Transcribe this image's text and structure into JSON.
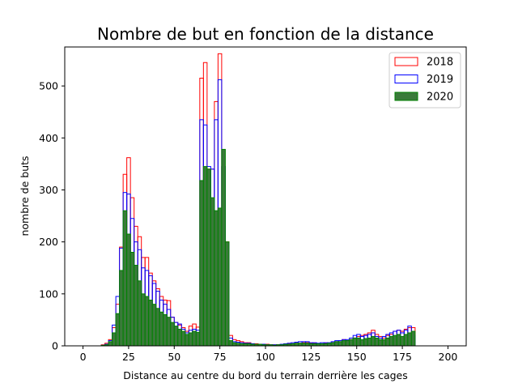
{
  "chart_data": {
    "type": "bar",
    "histtype": "step",
    "title": "Nombre de but en fonction de la distance",
    "xlabel": "Distance au centre du bord du terrain derrière les cages",
    "ylabel": "nombre de buts",
    "xlim": [
      -10,
      210
    ],
    "ylim": [
      0,
      575
    ],
    "xticks": [
      0,
      25,
      50,
      75,
      100,
      125,
      150,
      175,
      200
    ],
    "yticks": [
      0,
      100,
      200,
      300,
      400,
      500
    ],
    "grid": false,
    "legend_position": "top-right",
    "bin_start": 0,
    "bin_width": 2,
    "series": [
      {
        "name": "2018",
        "color": "#ff0000",
        "fill": "none",
        "values": [
          0,
          0,
          0,
          0,
          0,
          2,
          5,
          12,
          35,
          80,
          190,
          330,
          362,
          285,
          230,
          210,
          170,
          170,
          140,
          125,
          110,
          95,
          88,
          87,
          55,
          45,
          40,
          35,
          28,
          38,
          42,
          36,
          515,
          545,
          340,
          340,
          470,
          562,
          345,
          200,
          20,
          12,
          10,
          8,
          6,
          6,
          4,
          4,
          3,
          3,
          3,
          2,
          2,
          2,
          2,
          3,
          4,
          4,
          5,
          5,
          6,
          6,
          5,
          5,
          4,
          4,
          5,
          5,
          6,
          8,
          10,
          12,
          10,
          12,
          15,
          18,
          20,
          22,
          25,
          30,
          22,
          18,
          15,
          20,
          22,
          28,
          30,
          28,
          32,
          35,
          35
        ]
      },
      {
        "name": "2019",
        "color": "#0000ff",
        "fill": "none",
        "values": [
          0,
          0,
          0,
          0,
          0,
          1,
          3,
          10,
          40,
          95,
          188,
          295,
          292,
          245,
          200,
          185,
          150,
          145,
          135,
          120,
          105,
          88,
          80,
          70,
          55,
          45,
          42,
          32,
          25,
          30,
          32,
          30,
          435,
          425,
          345,
          340,
          435,
          512,
          345,
          198,
          15,
          8,
          7,
          6,
          5,
          5,
          4,
          3,
          3,
          3,
          2,
          2,
          2,
          2,
          3,
          4,
          5,
          6,
          7,
          8,
          8,
          8,
          6,
          6,
          5,
          6,
          6,
          6,
          8,
          10,
          10,
          12,
          12,
          15,
          20,
          22,
          18,
          20,
          22,
          25,
          18,
          15,
          18,
          22,
          25,
          28,
          30,
          25,
          30,
          38,
          20
        ]
      },
      {
        "name": "2020",
        "color": "#008000",
        "fill": "#3a7a3a",
        "values": [
          0,
          0,
          0,
          0,
          0,
          1,
          2,
          8,
          25,
          62,
          145,
          260,
          215,
          180,
          155,
          125,
          100,
          95,
          88,
          80,
          72,
          65,
          60,
          55,
          45,
          38,
          32,
          28,
          22,
          25,
          28,
          26,
          318,
          345,
          340,
          285,
          260,
          265,
          378,
          200,
          10,
          6,
          5,
          4,
          4,
          4,
          3,
          3,
          3,
          2,
          2,
          2,
          1,
          2,
          2,
          3,
          3,
          4,
          5,
          5,
          5,
          5,
          4,
          4,
          4,
          4,
          4,
          5,
          6,
          8,
          8,
          10,
          10,
          12,
          15,
          15,
          12,
          14,
          15,
          18,
          15,
          12,
          12,
          15,
          18,
          20,
          22,
          18,
          22,
          25,
          28
        ]
      }
    ]
  }
}
